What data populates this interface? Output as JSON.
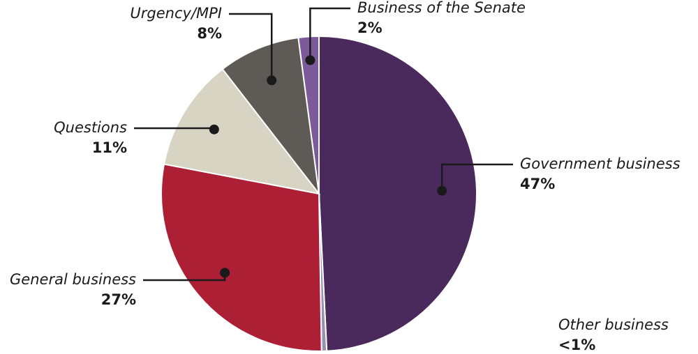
{
  "chart_data": {
    "type": "pie",
    "categories": [
      "Government business",
      "Other business",
      "General business",
      "Questions",
      "Urgency/MPI",
      "Business of the Senate"
    ],
    "values": [
      47,
      0.5,
      27,
      11,
      8,
      2
    ],
    "value_labels": [
      "47%",
      "<1%",
      "27%",
      "11%",
      "8%",
      "2%"
    ],
    "colors": [
      "#4a2a5c",
      "#9c8fb0",
      "#ad1f35",
      "#d7d4c3",
      "#5e5a55",
      "#7d5a9a"
    ]
  }
}
